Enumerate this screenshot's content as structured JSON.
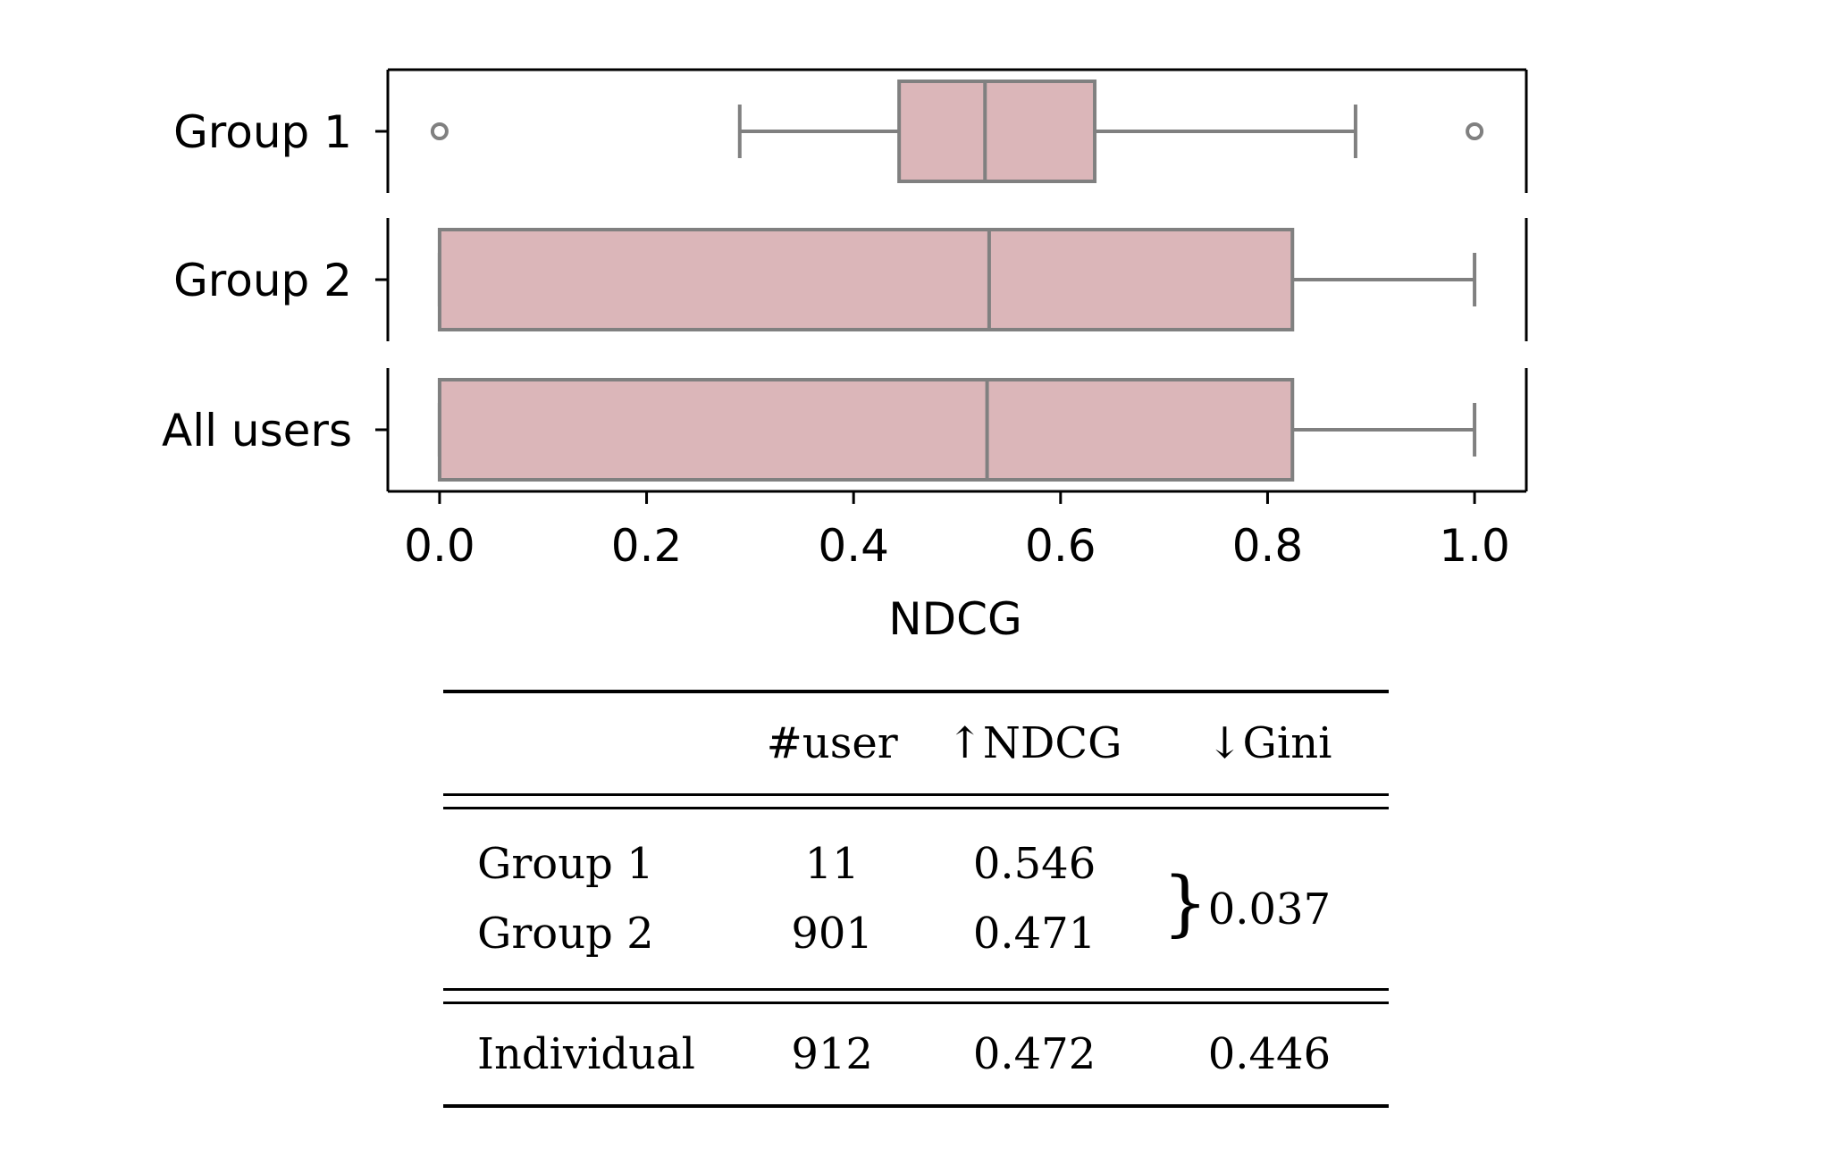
{
  "chart_data": {
    "type": "boxplot",
    "xlabel": "NDCG",
    "xlim": [
      -0.05,
      1.05
    ],
    "xticks": [
      "0.0",
      "0.2",
      "0.4",
      "0.6",
      "0.8",
      "1.0"
    ],
    "xtick_values": [
      0.0,
      0.2,
      0.4,
      0.6,
      0.8,
      1.0
    ],
    "categories": [
      "Group 1",
      "Group 2",
      "All users"
    ],
    "box_color": "#dbb6b9",
    "line_color": "#808080",
    "boxes": [
      {
        "label": "Group 1",
        "whisker_low": 0.29,
        "q1": 0.444,
        "median": 0.527,
        "q3": 0.633,
        "whisker_high": 0.885,
        "outliers": [
          0.0,
          1.0
        ]
      },
      {
        "label": "Group 2",
        "whisker_low": 0.0,
        "q1": 0.0,
        "median": 0.531,
        "q3": 0.824,
        "whisker_high": 1.0,
        "outliers": []
      },
      {
        "label": "All users",
        "whisker_low": 0.0,
        "q1": 0.0,
        "median": 0.529,
        "q3": 0.824,
        "whisker_high": 1.0,
        "outliers": []
      }
    ]
  },
  "table": {
    "headers": [
      "",
      "#user",
      "↑NDCG",
      "↓Gini"
    ],
    "group_rows": [
      {
        "name": "Group 1",
        "users": "11",
        "ndcg": "0.546"
      },
      {
        "name": "Group 2",
        "users": "901",
        "ndcg": "0.471"
      }
    ],
    "group_gini": "0.037",
    "brace": "}",
    "individual_row": {
      "name": "Individual",
      "users": "912",
      "ndcg": "0.472",
      "gini": "0.446"
    }
  }
}
